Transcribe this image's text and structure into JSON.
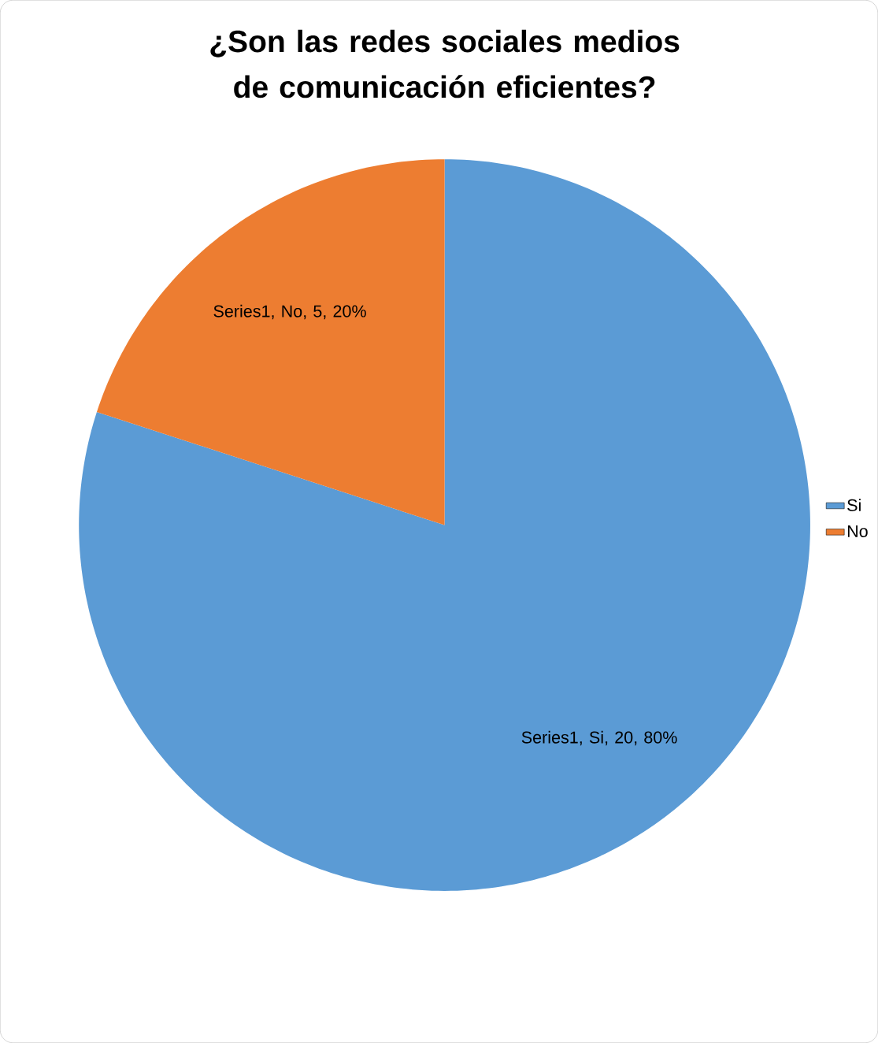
{
  "chart_data": {
    "type": "pie",
    "title": "¿Son las redes sociales medios de comunicación eficientes?",
    "categories": [
      "Si",
      "No"
    ],
    "values": [
      20,
      5
    ],
    "colors": [
      "#5b9bd5",
      "#ed7d31"
    ],
    "value_labels": [
      "Series1, Si, 20, 80%",
      "Series1, No, 5, 20%"
    ],
    "legend": "right"
  }
}
